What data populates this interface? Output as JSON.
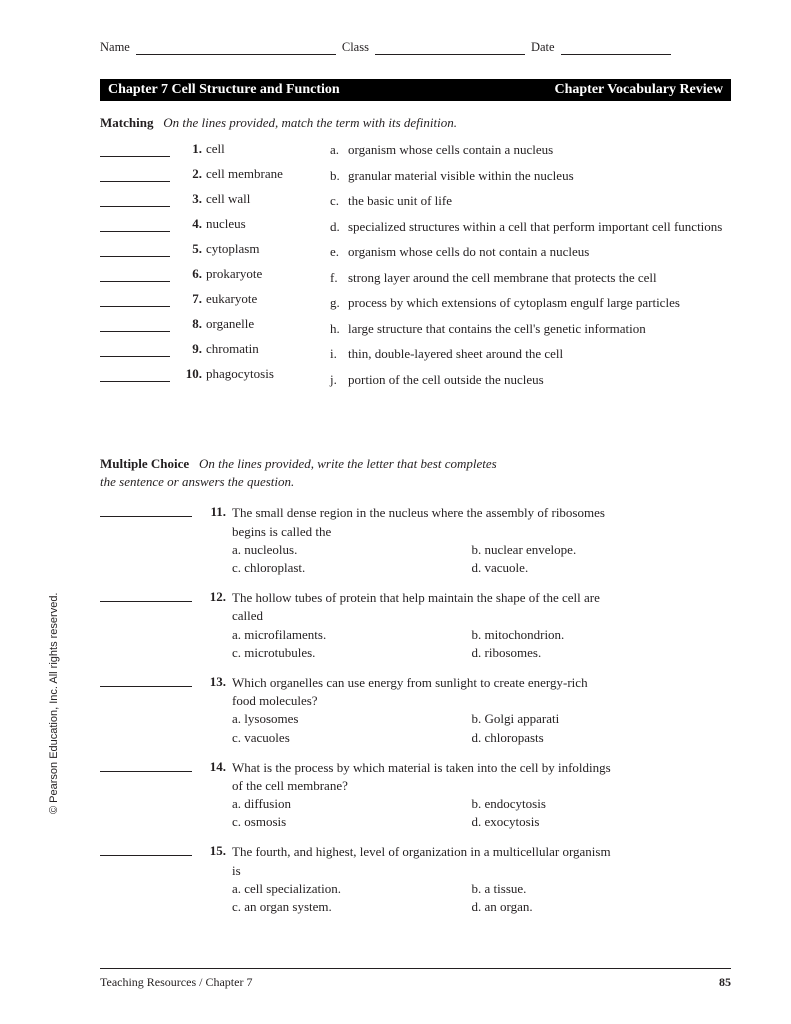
{
  "header": {
    "name_label": "Name",
    "class_label": "Class",
    "date_label": "Date"
  },
  "titlebar": {
    "left": "Chapter 7  Cell Structure and Function",
    "right": "Chapter Vocabulary Review"
  },
  "matching": {
    "heading_bold": "Matching",
    "heading_ital": "On the lines provided, match the term with its definition.",
    "terms": [
      {
        "num": "1.",
        "text": "cell"
      },
      {
        "num": "2.",
        "text": "cell membrane"
      },
      {
        "num": "3.",
        "text": "cell wall"
      },
      {
        "num": "4.",
        "text": "nucleus"
      },
      {
        "num": "5.",
        "text": "cytoplasm"
      },
      {
        "num": "6.",
        "text": "prokaryote"
      },
      {
        "num": "7.",
        "text": "eukaryote"
      },
      {
        "num": "8.",
        "text": "organelle"
      },
      {
        "num": "9.",
        "text": "chromatin"
      },
      {
        "num": "10.",
        "text": "phagocytosis"
      }
    ],
    "defs": [
      {
        "let": "a.",
        "text": "organism whose cells contain a nucleus"
      },
      {
        "let": "b.",
        "text": "granular material visible within the nucleus"
      },
      {
        "let": "c.",
        "text": "the basic unit of life"
      },
      {
        "let": "d.",
        "text": "specialized structures within a cell that perform important cell functions"
      },
      {
        "let": "e.",
        "text": "organism whose cells do not contain a nucleus"
      },
      {
        "let": "f.",
        "text": "strong layer around the cell membrane that protects the cell"
      },
      {
        "let": "g.",
        "text": "process by which extensions of cytoplasm engulf large particles"
      },
      {
        "let": "h.",
        "text": "large structure that contains the cell's genetic information"
      },
      {
        "let": "i.",
        "text": "thin, double-layered sheet around the cell"
      },
      {
        "let": "j.",
        "text": "portion of the cell outside the nucleus"
      }
    ]
  },
  "mc": {
    "heading_bold": "Multiple Choice",
    "heading_ital_l1": "On the lines provided, write the letter that best completes",
    "heading_ital_l2": "the sentence or answers the question.",
    "questions": [
      {
        "num": "11.",
        "stem": "The small dense region in the nucleus where the assembly of ribosomes begins is called the",
        "opts": [
          "a.  nucleolus.",
          "b.  nuclear envelope.",
          "c.  chloroplast.",
          "d.  vacuole."
        ]
      },
      {
        "num": "12.",
        "stem": "The hollow tubes of protein that help maintain the shape of the cell are called",
        "opts": [
          "a.  microfilaments.",
          "b.  mitochondrion.",
          "c.  microtubules.",
          "d.  ribosomes."
        ]
      },
      {
        "num": "13.",
        "stem": "Which organelles can use energy from sunlight to create energy-rich food molecules?",
        "opts": [
          "a.  lysosomes",
          "b.  Golgi apparati",
          "c.  vacuoles",
          "d.  chloropasts"
        ]
      },
      {
        "num": "14.",
        "stem": "What is the process by which material is taken into the cell by infoldings of the cell membrane?",
        "opts": [
          "a.  diffusion",
          "b.  endocytosis",
          "c.  osmosis",
          "d.  exocytosis"
        ]
      },
      {
        "num": "15.",
        "stem": "The fourth, and highest, level of organization in a multicellular organism is",
        "opts": [
          "a.  cell specialization.",
          "b.  a tissue.",
          "c.  an organ system.",
          "d.  an organ."
        ]
      }
    ]
  },
  "copyright": "© Pearson Education, Inc. All rights reserved.",
  "footer": {
    "left": "Teaching Resources / Chapter 7",
    "page": "85"
  },
  "colors": {
    "text": "#231f20",
    "bg": "#ffffff",
    "bar_bg": "#000000",
    "bar_fg": "#ffffff"
  }
}
